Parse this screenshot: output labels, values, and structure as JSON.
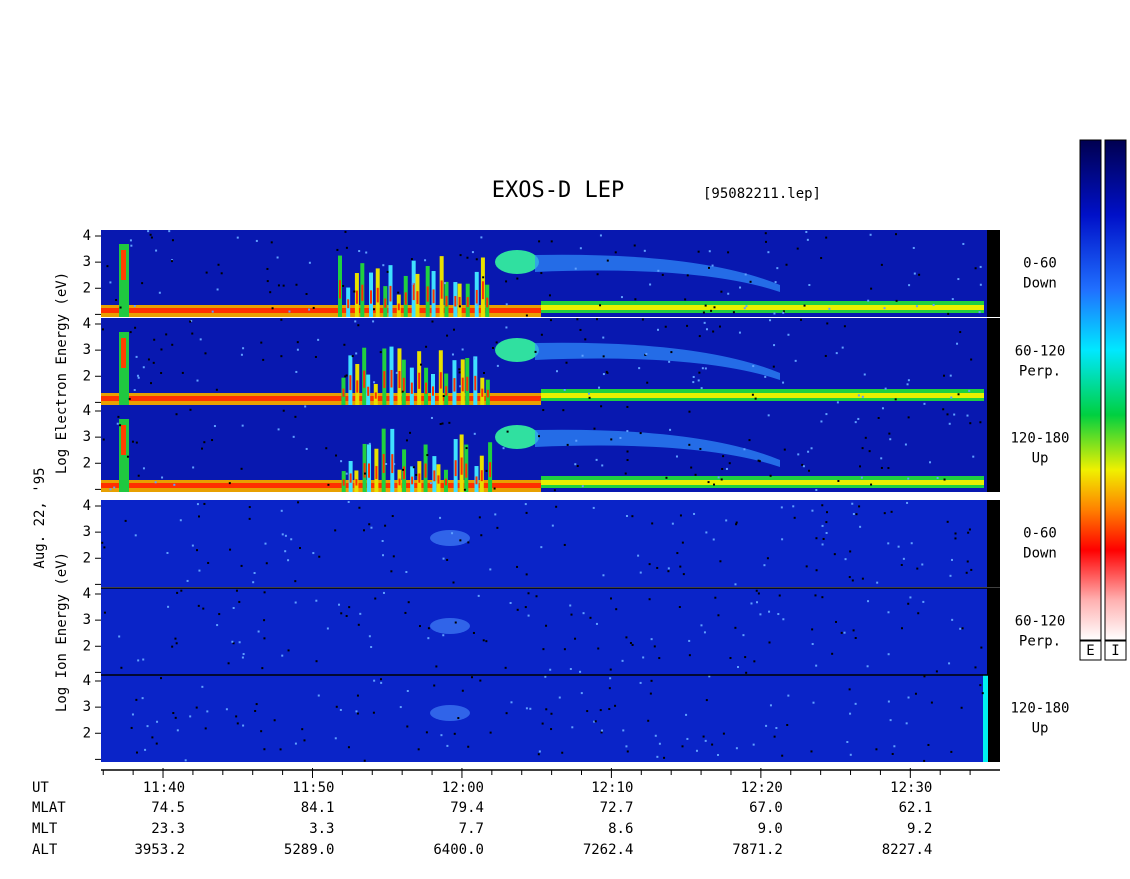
{
  "title": "EXOS-D LEP",
  "file": "[95082211.lep]",
  "date": "Aug. 22, '95",
  "electron": {
    "axis_label": "Log  Electron  Energy (eV)",
    "panels": [
      {
        "range": "0-60",
        "direction": "Down"
      },
      {
        "range": "60-120",
        "direction": "Perp."
      },
      {
        "range": "120-180",
        "direction": "Up"
      }
    ]
  },
  "ion": {
    "axis_label": "Log  Ion  Energy (eV)",
    "panels": [
      {
        "range": "0-60",
        "direction": "Down"
      },
      {
        "range": "60-120",
        "direction": "Perp."
      },
      {
        "range": "120-180",
        "direction": "Up"
      }
    ]
  },
  "ylim": [
    0.9,
    4.23
  ],
  "yticks": [
    2,
    3,
    4
  ],
  "yminor": [
    1
  ],
  "xlim": [
    695.85,
    756
  ],
  "xticks": [
    {
      "value": 700,
      "label": "11:40"
    },
    {
      "value": 710,
      "label": "11:50"
    },
    {
      "value": 720,
      "label": "12:00"
    },
    {
      "value": 730,
      "label": "12:10"
    },
    {
      "value": 740,
      "label": "12:20"
    },
    {
      "value": 750,
      "label": "12:30"
    }
  ],
  "xminor": [
    696,
    698,
    702,
    704,
    706,
    708,
    712,
    714,
    716,
    718,
    722,
    724,
    726,
    728,
    732,
    734,
    736,
    738,
    742,
    744,
    746,
    748,
    752,
    754
  ],
  "ephemeris": {
    "time_label": "UT",
    "rows": [
      {
        "name": "MLAT",
        "values": [
          "74.5",
          "84.1",
          "79.4",
          "72.7",
          "67.0",
          "62.1"
        ]
      },
      {
        "name": "MLT",
        "values": [
          "23.3",
          "3.3",
          "7.7",
          "8.6",
          "9.0",
          "9.2"
        ]
      },
      {
        "name": "ALT",
        "values": [
          "3953.2",
          "5289.0",
          "6400.0",
          "7262.4",
          "7871.2",
          "8227.4"
        ]
      }
    ]
  },
  "colorbars": [
    "E",
    "I"
  ]
}
